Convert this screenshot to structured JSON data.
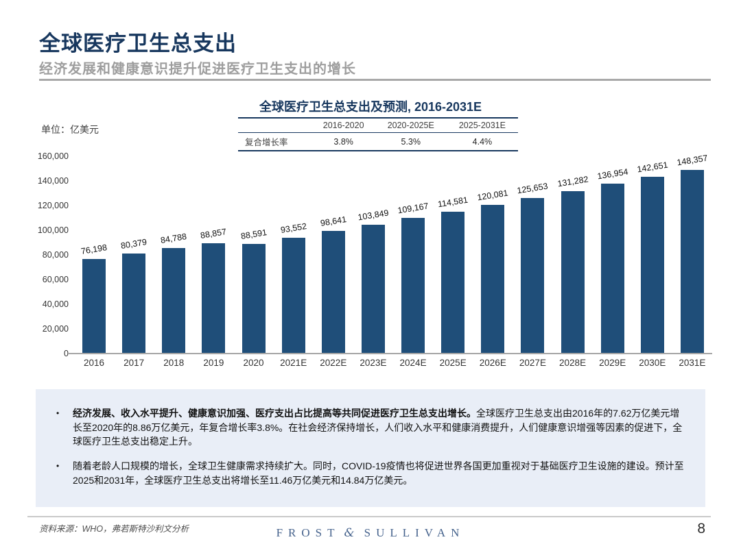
{
  "header": {
    "title": "全球医疗卫生总支出",
    "subtitle": "经济发展和健康意识提升促进医疗卫生支出的增长"
  },
  "chart": {
    "title": "全球医疗卫生总支出及预测, 2016-2031E",
    "unit_label": "单位：亿美元"
  },
  "cagr_table": {
    "row_label": "复合增长率",
    "columns": [
      "2016-2020",
      "2020-2025E",
      "2025-2031E"
    ],
    "values": [
      "3.8%",
      "5.3%",
      "4.4%"
    ]
  },
  "chart_data": {
    "type": "bar",
    "title": "全球医疗卫生总支出及预测, 2016-2031E",
    "xlabel": "",
    "ylabel": "亿美元",
    "categories": [
      "2016",
      "2017",
      "2018",
      "2019",
      "2020",
      "2021E",
      "2022E",
      "2023E",
      "2024E",
      "2025E",
      "2026E",
      "2027E",
      "2028E",
      "2029E",
      "2030E",
      "2031E"
    ],
    "values": [
      76198,
      80379,
      84788,
      88857,
      88591,
      93552,
      98641,
      103849,
      109167,
      114581,
      120081,
      125653,
      131282,
      136954,
      142651,
      148357
    ],
    "ylim": [
      0,
      160000
    ],
    "yticks": [
      0,
      20000,
      40000,
      60000,
      80000,
      100000,
      120000,
      140000,
      160000
    ],
    "grid": false,
    "legend": false,
    "bar_color": "#1f4e79",
    "label_rotation_deg": -9
  },
  "notes": {
    "bullets": [
      {
        "bold": "经济发展、收入水平提升、健康意识加强、医疗支出占比提高等共同促进医疗卫生总支出增长。",
        "text": "全球医疗卫生总支出由2016年的7.62万亿美元增长至2020年的8.86万亿美元，年复合增长率3.8%。在社会经济保持增长，人们收入水平和健康消费提升，人们健康意识增强等因素的促进下，全球医疗卫生总支出稳定上升。"
      },
      {
        "bold": "",
        "text": "随着老龄人口规模的增长，全球卫生健康需求持续扩大。同时，COVID-19疫情也将促进世界各国更加重视对于基础医疗卫生设施的建设。预计至2025和2031年，全球医疗卫生总支出将增长至11.46万亿美元和14.84万亿美元。"
      }
    ]
  },
  "footer": {
    "source": "资料来源：WHO，弗若斯特沙利文分析",
    "logo_left": "FROST",
    "logo_amp": "&",
    "logo_right": "SULLIVAN",
    "page_number": "8"
  }
}
